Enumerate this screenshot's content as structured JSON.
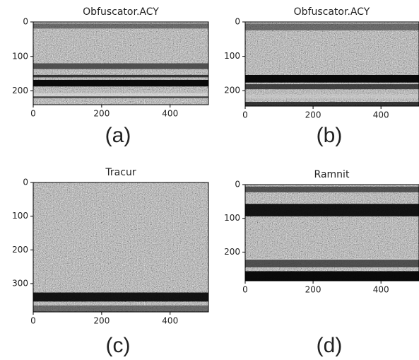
{
  "chart_data": [
    {
      "type": "image",
      "title": "Obfuscator.ACY",
      "caption": "(a)",
      "xlim": [
        0,
        512
      ],
      "ylim": [
        240,
        0
      ],
      "xticks": [
        0,
        200,
        400
      ],
      "yticks": [
        0,
        100,
        200
      ]
    },
    {
      "type": "image",
      "title": "Obfuscator.ACY",
      "caption": "(b)",
      "xlim": [
        0,
        512
      ],
      "ylim": [
        245,
        0
      ],
      "xticks": [
        0,
        200,
        400
      ],
      "yticks": [
        0,
        100,
        200
      ]
    },
    {
      "type": "image",
      "title": "Tracur",
      "caption": "(c)",
      "xlim": [
        0,
        512
      ],
      "ylim": [
        384,
        0
      ],
      "xticks": [
        0,
        200,
        400
      ],
      "yticks": [
        0,
        100,
        200,
        300
      ]
    },
    {
      "type": "image",
      "title": "Ramnit",
      "caption": "(d)",
      "xlim": [
        0,
        512
      ],
      "ylim": [
        285,
        0
      ],
      "xticks": [
        0,
        200,
        400
      ],
      "yticks": [
        0,
        100,
        200
      ]
    }
  ]
}
